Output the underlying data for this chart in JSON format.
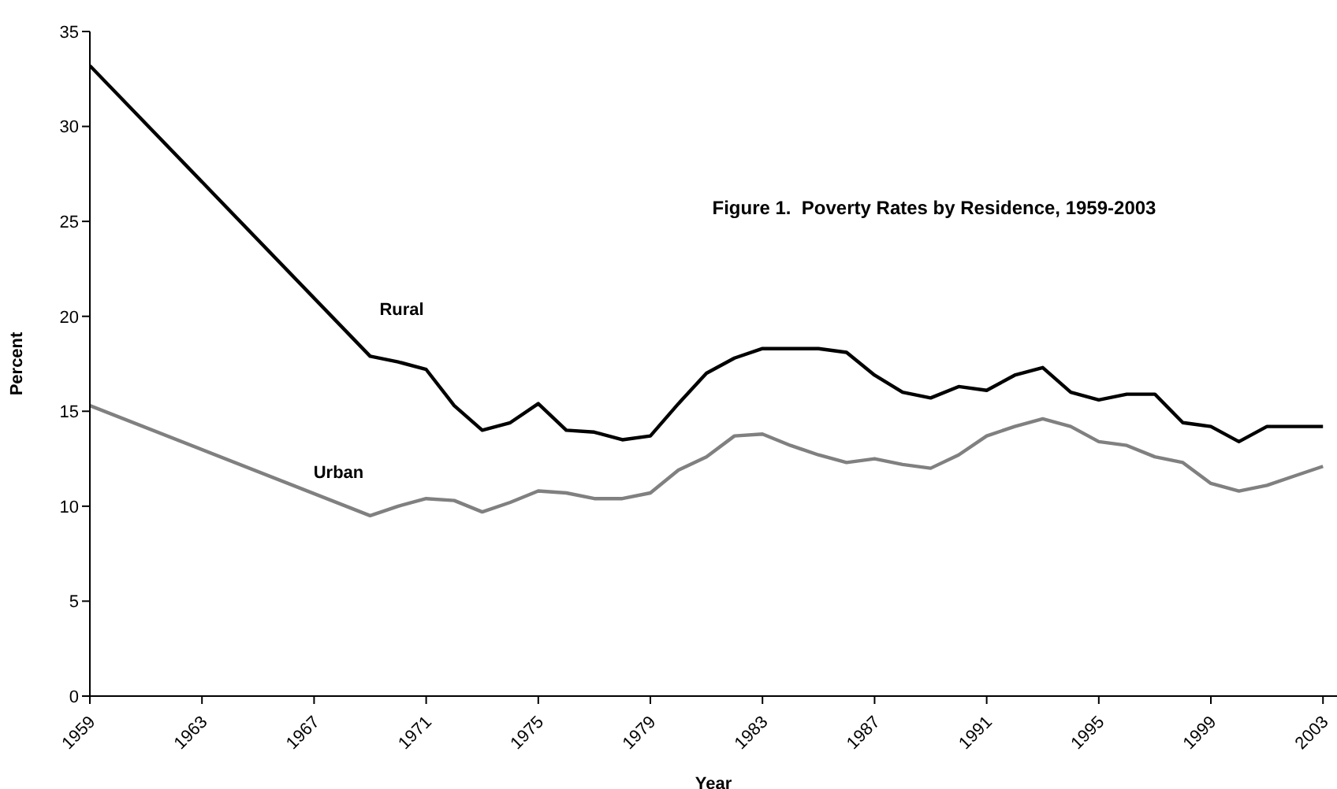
{
  "chart_data": {
    "type": "line",
    "title": "Figure 1.  Poverty Rates by Residence, 1959-2003",
    "xlabel": "Year",
    "ylabel": "Percent",
    "x": [
      1959,
      1969,
      1970,
      1971,
      1972,
      1973,
      1974,
      1975,
      1976,
      1977,
      1978,
      1979,
      1980,
      1981,
      1982,
      1983,
      1984,
      1985,
      1986,
      1987,
      1988,
      1989,
      1990,
      1991,
      1992,
      1993,
      1994,
      1995,
      1996,
      1997,
      1998,
      1999,
      2000,
      2001,
      2002,
      2003
    ],
    "series": [
      {
        "name": "Rural",
        "color": "#000000",
        "values": [
          33.2,
          17.9,
          17.6,
          17.2,
          15.3,
          14.0,
          14.4,
          15.4,
          14.0,
          13.9,
          13.5,
          13.7,
          15.4,
          17.0,
          17.8,
          18.3,
          18.3,
          18.3,
          18.1,
          16.9,
          16.0,
          15.7,
          16.3,
          16.1,
          16.9,
          17.3,
          16.0,
          15.6,
          15.9,
          15.9,
          14.4,
          14.2,
          13.4,
          14.2,
          14.2,
          14.2
        ]
      },
      {
        "name": "Urban",
        "color": "#808080",
        "values": [
          15.3,
          9.5,
          10.0,
          10.4,
          10.3,
          9.7,
          10.2,
          10.8,
          10.7,
          10.4,
          10.4,
          10.7,
          11.9,
          12.6,
          13.7,
          13.8,
          13.2,
          12.7,
          12.3,
          12.5,
          12.2,
          12.0,
          12.7,
          13.7,
          14.2,
          14.6,
          14.2,
          13.4,
          13.2,
          12.6,
          12.3,
          11.2,
          10.8,
          11.1,
          11.6,
          12.1
        ]
      }
    ],
    "xlim": [
      1959,
      2003.5
    ],
    "xticks": [
      1959,
      1963,
      1967,
      1971,
      1975,
      1979,
      1983,
      1987,
      1991,
      1995,
      1999,
      2003
    ],
    "ylim": [
      0,
      35
    ],
    "yticks": [
      0,
      5,
      10,
      15,
      20,
      25,
      30,
      35
    ],
    "grid": false,
    "legend": false,
    "marker": "none",
    "line_style": "solid"
  }
}
